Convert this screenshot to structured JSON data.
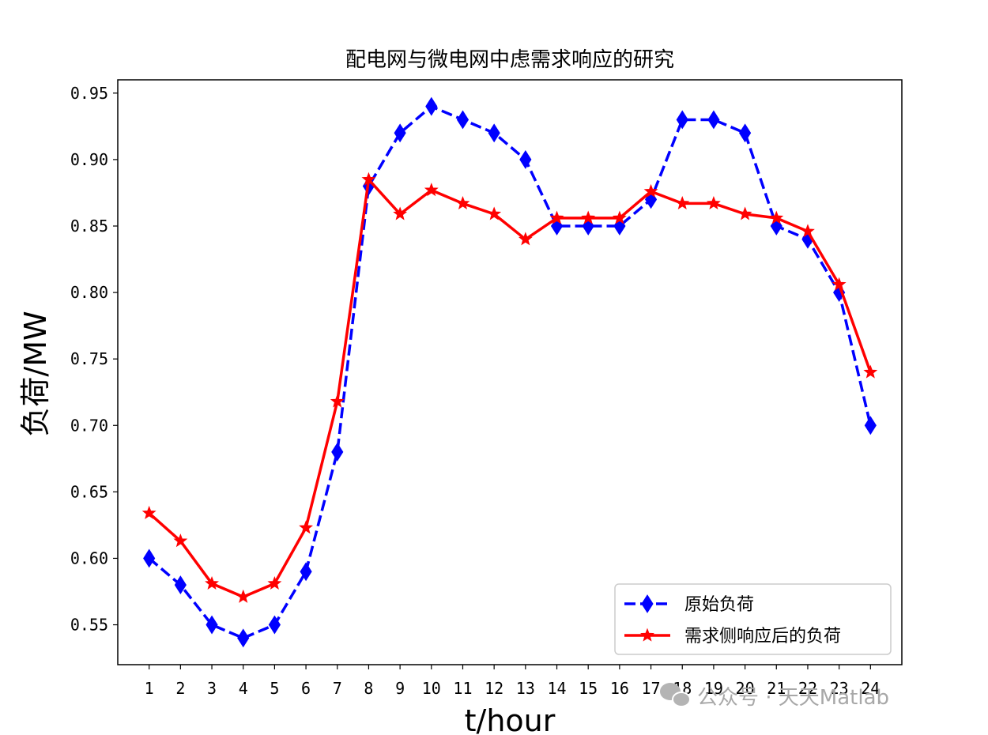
{
  "chart_data": {
    "type": "line",
    "title": "配电网与微电网中虑需求响应的研究",
    "xlabel": "t/hour",
    "ylabel": "负荷/MW",
    "x": [
      1,
      2,
      3,
      4,
      5,
      6,
      7,
      8,
      9,
      10,
      11,
      12,
      13,
      14,
      15,
      16,
      17,
      18,
      19,
      20,
      21,
      22,
      23,
      24
    ],
    "xlim": [
      0,
      25
    ],
    "ylim": [
      0.52,
      0.96
    ],
    "yticks": [
      "0.55",
      "0.60",
      "0.65",
      "0.70",
      "0.75",
      "0.80",
      "0.85",
      "0.90",
      "0.95"
    ],
    "grid": false,
    "legend_position": "lower-right",
    "series": [
      {
        "name": "原始负荷",
        "color": "#0000ff",
        "line_style": "dashed",
        "marker": "diamond",
        "values": [
          0.6,
          0.58,
          0.55,
          0.54,
          0.55,
          0.59,
          0.68,
          0.88,
          0.92,
          0.94,
          0.93,
          0.92,
          0.9,
          0.85,
          0.85,
          0.85,
          0.87,
          0.93,
          0.93,
          0.92,
          0.85,
          0.84,
          0.8,
          0.7
        ]
      },
      {
        "name": "需求侧响应后的负荷",
        "color": "#ff0000",
        "line_style": "solid",
        "marker": "star",
        "values": [
          0.634,
          0.613,
          0.581,
          0.571,
          0.581,
          0.623,
          0.718,
          0.885,
          0.859,
          0.877,
          0.867,
          0.859,
          0.84,
          0.856,
          0.856,
          0.856,
          0.876,
          0.867,
          0.867,
          0.859,
          0.856,
          0.846,
          0.806,
          0.74
        ]
      }
    ]
  },
  "watermark": {
    "text": "公众号 · 天天Matlab",
    "icon": "wechat-icon",
    "color": "#a8a8a8"
  }
}
